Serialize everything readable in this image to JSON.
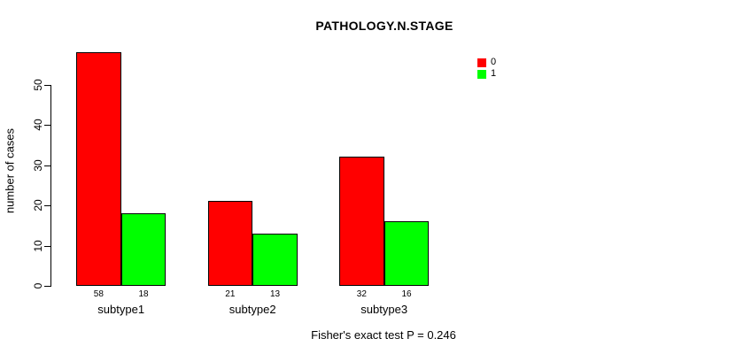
{
  "chart_data": {
    "type": "bar",
    "title": "PATHOLOGY.N.STAGE",
    "categories": [
      "subtype1",
      "subtype2",
      "subtype3"
    ],
    "series": [
      {
        "name": "0",
        "color": "#FF0000",
        "values": [
          58,
          21,
          32
        ]
      },
      {
        "name": "1",
        "color": "#00FF00",
        "values": [
          18,
          13,
          16
        ]
      }
    ],
    "ylabel": "number of cases",
    "xlabel": "",
    "yticks": [
      0,
      10,
      20,
      30,
      40,
      50
    ],
    "ylim": [
      0,
      58
    ],
    "grid": false,
    "legend_position": "top-right",
    "legend_labels": [
      "0",
      "1"
    ],
    "bar_value_labels": [
      [
        "58",
        "21",
        "32"
      ],
      [
        "18",
        "13",
        "16"
      ]
    ],
    "annotation": "Fisher's exact test P = 0.246",
    "bar_border_color": "#000000",
    "background_color": "#FFFFFF",
    "text_color": "#000000"
  }
}
